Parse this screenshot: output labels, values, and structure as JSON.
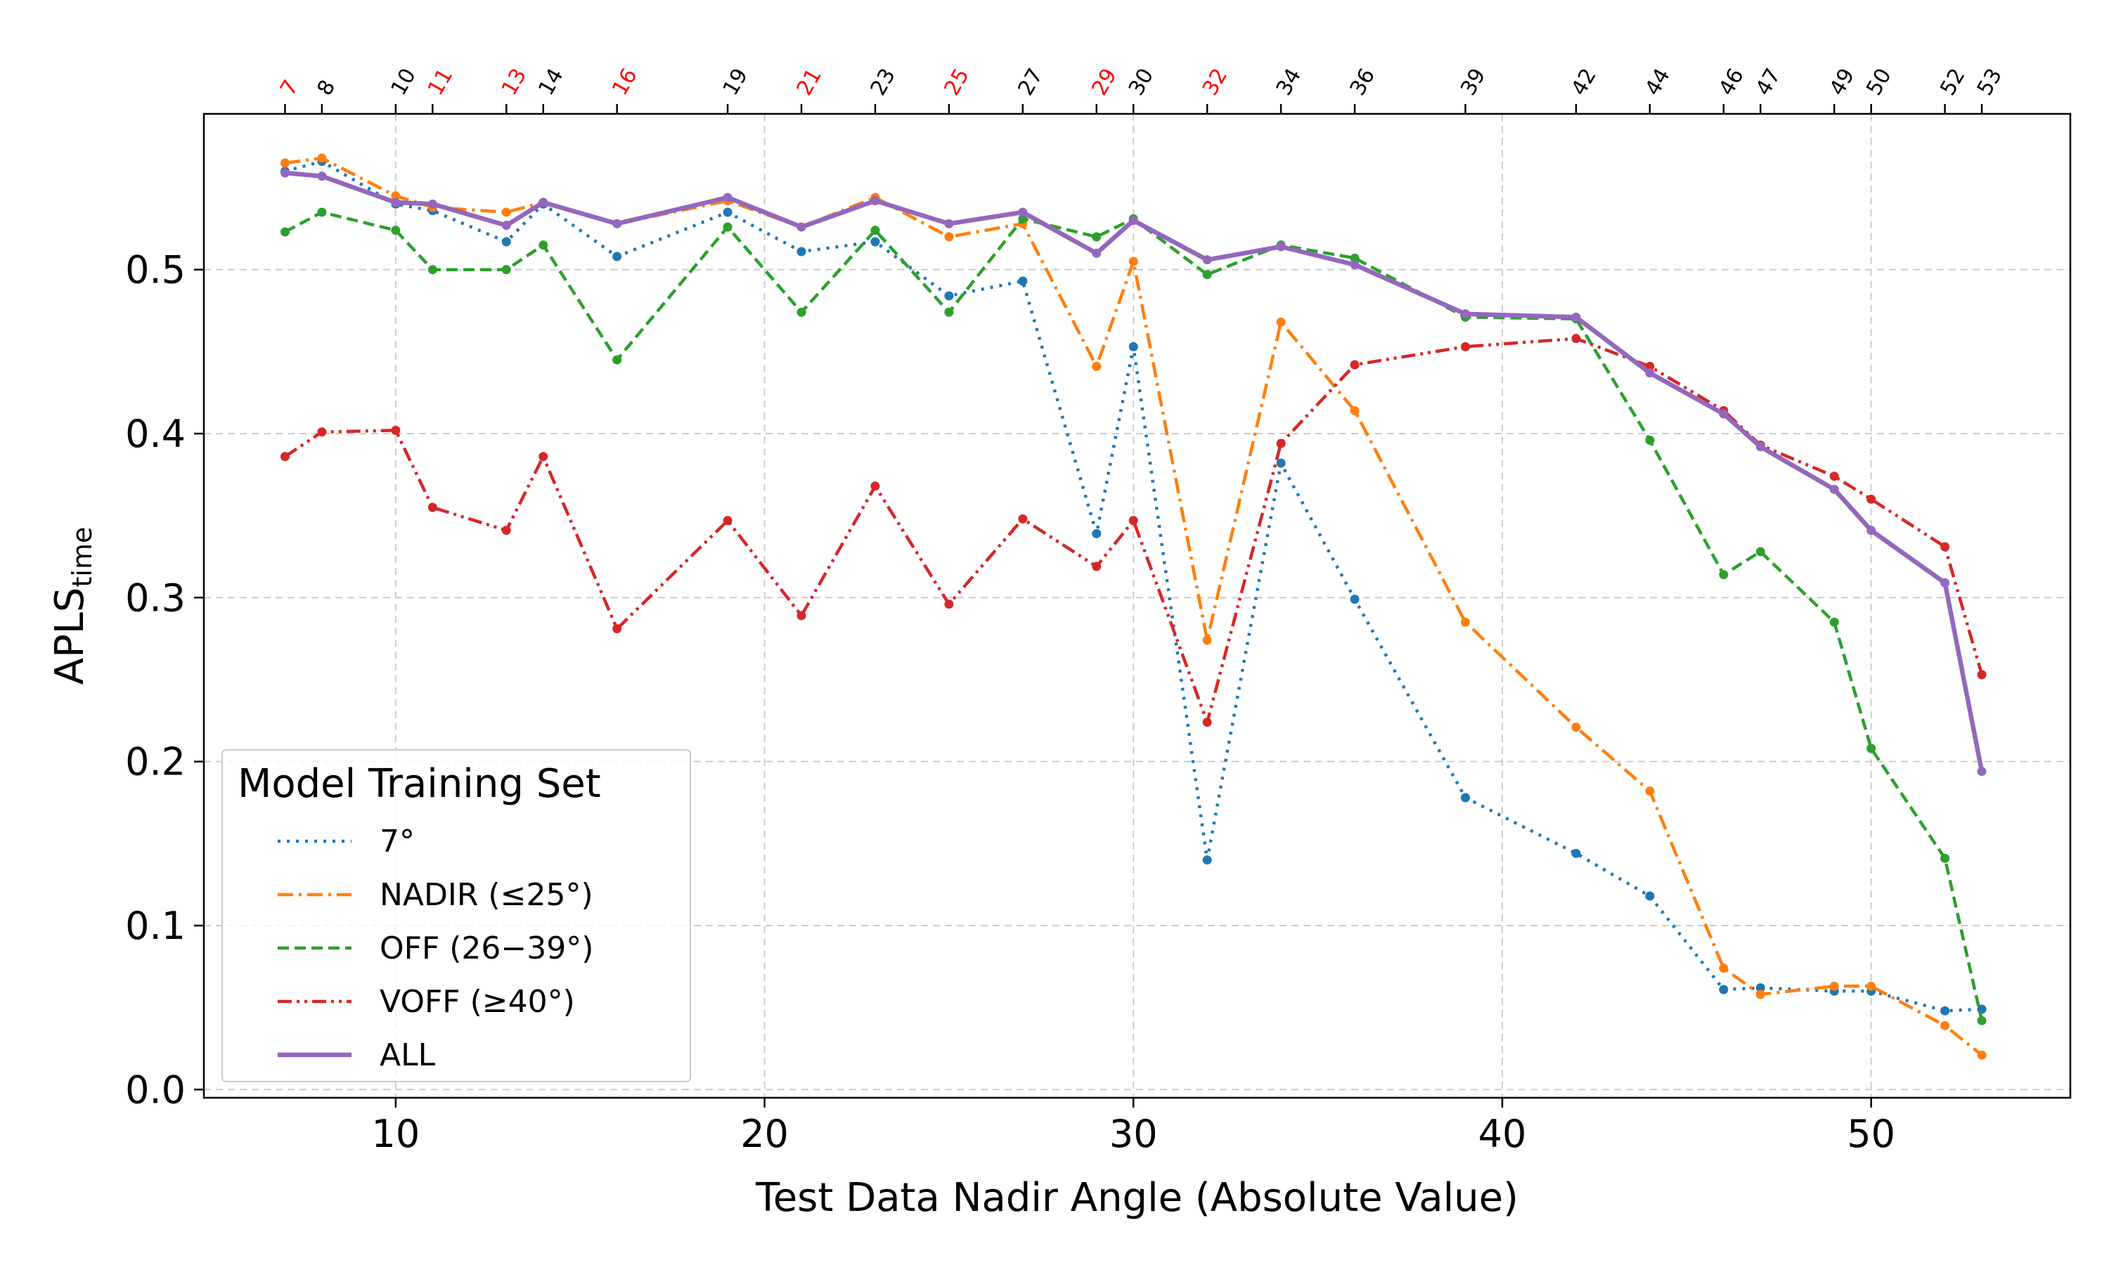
{
  "chart_data": {
    "type": "line",
    "xlabel": "Test Data Nadir Angle (Absolute Value)",
    "ylabel_main": "APLS",
    "ylabel_sub": "time",
    "xlim": [
      4.8,
      55.4
    ],
    "ylim": [
      -0.005,
      0.595
    ],
    "xticks": [
      10,
      20,
      30,
      40,
      50
    ],
    "yticks": [
      0.0,
      0.1,
      0.2,
      0.3,
      0.4,
      0.5
    ],
    "ytick_labels": [
      "0.0",
      "0.1",
      "0.2",
      "0.3",
      "0.4",
      "0.5"
    ],
    "top_ticks": [
      7,
      8,
      10,
      11,
      13,
      14,
      16,
      19,
      21,
      23,
      25,
      27,
      29,
      30,
      32,
      34,
      36,
      39,
      42,
      44,
      46,
      47,
      49,
      50,
      52,
      53
    ],
    "top_ticks_red": [
      7,
      11,
      13,
      16,
      21,
      25,
      29,
      32
    ],
    "grid": true,
    "legend_title": "Model Training Set",
    "legend_position": "bottom-left",
    "x": [
      7,
      8,
      10,
      11,
      13,
      14,
      16,
      19,
      21,
      23,
      25,
      27,
      29,
      30,
      32,
      34,
      36,
      39,
      42,
      44,
      46,
      47,
      49,
      50,
      52,
      53
    ],
    "series": [
      {
        "name": "7°",
        "color": "#1f77b4",
        "style": "dotted",
        "values": [
          0.56,
          0.566,
          0.54,
          0.536,
          0.517,
          0.54,
          0.508,
          0.535,
          0.511,
          0.517,
          0.484,
          0.493,
          0.339,
          0.453,
          0.14,
          0.382,
          0.299,
          0.178,
          0.144,
          0.118,
          0.061,
          0.062,
          0.06,
          0.06,
          0.048,
          0.049
        ]
      },
      {
        "name": "NADIR (≤25°)",
        "color": "#ff7f0e",
        "style": "dashdot",
        "values": [
          0.565,
          0.568,
          0.545,
          0.538,
          0.535,
          0.541,
          0.528,
          0.542,
          0.526,
          0.544,
          0.52,
          0.528,
          0.441,
          0.505,
          0.274,
          0.468,
          0.414,
          0.285,
          0.221,
          0.182,
          0.074,
          0.058,
          0.063,
          0.063,
          0.039,
          0.021
        ]
      },
      {
        "name": "OFF (26−39°)",
        "color": "#2ca02c",
        "style": "dashed",
        "values": [
          0.523,
          0.535,
          0.524,
          0.5,
          0.5,
          0.515,
          0.445,
          0.526,
          0.474,
          0.524,
          0.474,
          0.531,
          0.52,
          0.531,
          0.497,
          0.515,
          0.507,
          0.471,
          0.47,
          0.396,
          0.314,
          0.328,
          0.285,
          0.208,
          0.141,
          0.042
        ]
      },
      {
        "name": "VOFF (≥40°)",
        "color": "#d62728",
        "style": "dashdotdot",
        "values": [
          0.386,
          0.401,
          0.402,
          0.355,
          0.341,
          0.386,
          0.281,
          0.347,
          0.289,
          0.368,
          0.296,
          0.348,
          0.319,
          0.347,
          0.224,
          0.394,
          0.442,
          0.453,
          0.458,
          0.441,
          0.414,
          0.393,
          0.374,
          0.36,
          0.331,
          0.253
        ]
      },
      {
        "name": "ALL",
        "color": "#9467bd",
        "style": "solid",
        "values": [
          0.559,
          0.557,
          0.541,
          0.54,
          0.527,
          0.541,
          0.528,
          0.544,
          0.526,
          0.542,
          0.528,
          0.535,
          0.51,
          0.53,
          0.506,
          0.514,
          0.503,
          0.473,
          0.471,
          0.437,
          0.412,
          0.392,
          0.366,
          0.341,
          0.309,
          0.194
        ]
      }
    ]
  }
}
